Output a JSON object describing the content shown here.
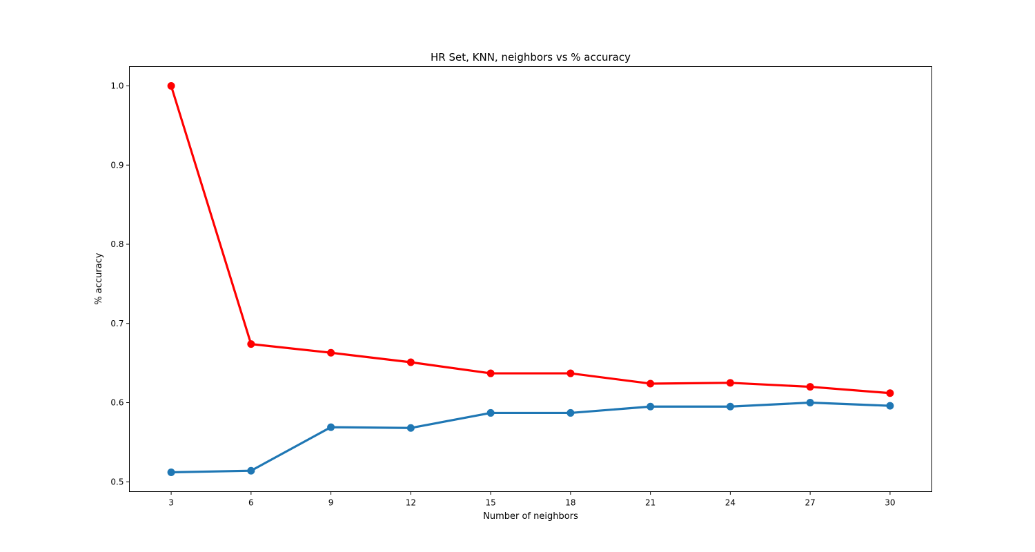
{
  "chart_data": {
    "type": "line",
    "title": "HR Set, KNN, neighbors vs % accuracy",
    "xlabel": "Number of neighbors",
    "ylabel": "% accuracy",
    "x": [
      3,
      6,
      9,
      12,
      15,
      18,
      21,
      24,
      27,
      30
    ],
    "x_ticks": [
      "3",
      "6",
      "9",
      "12",
      "15",
      "18",
      "21",
      "24",
      "27",
      "30"
    ],
    "y_ticks": [
      "0.5",
      "0.6",
      "0.7",
      "0.8",
      "0.9",
      "1.0"
    ],
    "xlim": [
      1.43,
      31.57
    ],
    "ylim": [
      0.4876,
      1.0244
    ],
    "grid": false,
    "series": [
      {
        "color": "#ff0000",
        "values": [
          1.0,
          0.674,
          0.663,
          0.651,
          0.637,
          0.637,
          0.624,
          0.625,
          0.62,
          0.612
        ]
      },
      {
        "color": "#1f77b4",
        "values": [
          0.512,
          0.514,
          0.569,
          0.568,
          0.587,
          0.587,
          0.595,
          0.595,
          0.6,
          0.596
        ]
      }
    ]
  }
}
